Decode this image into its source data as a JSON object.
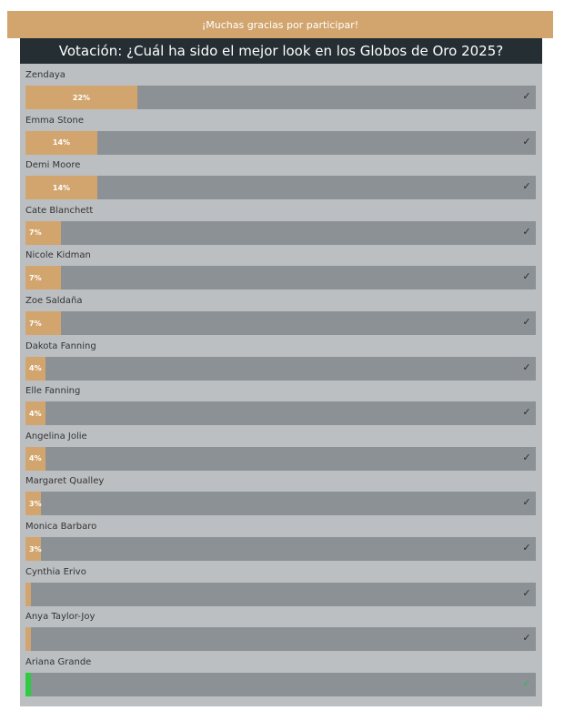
{
  "banner": {
    "text": "¡Muchas gracias por participar!"
  },
  "poll": {
    "title": "Votación: ¿Cuál ha sido el mejor look en los Globos de Oro 2025?",
    "check_icon": "check-icon",
    "colors": {
      "fill": "#d2a56e",
      "selected_fill": "#2ecc40",
      "track": "#8b9194"
    },
    "options": [
      {
        "name": "Zendaya",
        "percent": 22,
        "label": "22%",
        "selected": false
      },
      {
        "name": "Emma Stone",
        "percent": 14,
        "label": "14%",
        "selected": false
      },
      {
        "name": "Demi Moore",
        "percent": 14,
        "label": "14%",
        "selected": false
      },
      {
        "name": "Cate Blanchett",
        "percent": 7,
        "label": "7%",
        "selected": false
      },
      {
        "name": "Nicole Kidman",
        "percent": 7,
        "label": "7%",
        "selected": false
      },
      {
        "name": "Zoe Saldaña",
        "percent": 7,
        "label": "7%",
        "selected": false
      },
      {
        "name": "Dakota Fanning",
        "percent": 4,
        "label": "4%",
        "selected": false
      },
      {
        "name": "Elle Fanning",
        "percent": 4,
        "label": "4%",
        "selected": false
      },
      {
        "name": "Angelina Jolie",
        "percent": 4,
        "label": "4%",
        "selected": false
      },
      {
        "name": "Margaret Qualley",
        "percent": 3,
        "label": "3%",
        "selected": false
      },
      {
        "name": "Monica Barbaro",
        "percent": 3,
        "label": "3%",
        "selected": false
      },
      {
        "name": "Cynthia Erivo",
        "percent": 1,
        "label": "",
        "selected": false
      },
      {
        "name": "Anya Taylor-Joy",
        "percent": 1,
        "label": "",
        "selected": false
      },
      {
        "name": "Ariana Grande",
        "percent": 1,
        "label": "",
        "selected": true
      }
    ]
  }
}
